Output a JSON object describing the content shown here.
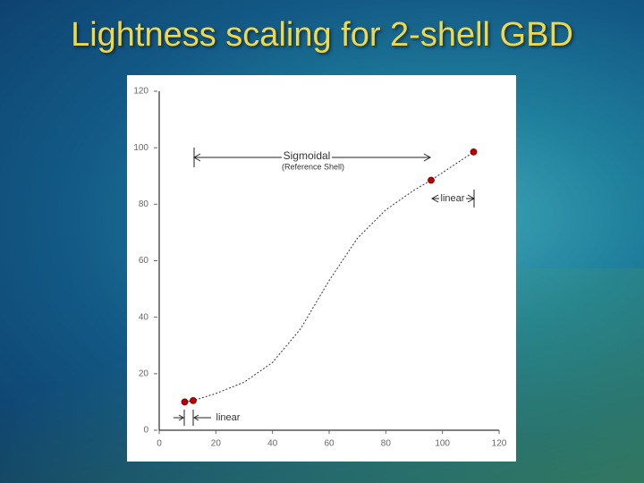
{
  "title": "Lightness scaling for 2-shell GBD",
  "chart_data": {
    "type": "line",
    "xlim": [
      0,
      120
    ],
    "ylim": [
      0,
      120
    ],
    "xticks": [
      0,
      20,
      40,
      60,
      80,
      100,
      120
    ],
    "yticks": [
      0,
      20,
      40,
      60,
      80,
      100,
      120
    ],
    "series": [
      {
        "color": "#333333",
        "dashed": true,
        "x": [
          9,
          12,
          20,
          30,
          40,
          50,
          60,
          70,
          80,
          90,
          96,
          111
        ],
        "values": [
          10,
          10.5,
          13,
          17,
          24,
          36,
          53,
          68,
          78,
          85,
          88.5,
          98.5
        ]
      },
      {
        "color": "#c00000",
        "markers": true,
        "x": [
          9,
          12,
          96,
          111
        ],
        "values": [
          10,
          10.5,
          88.5,
          98.5
        ]
      }
    ],
    "annotations": [
      "Sigmoidal",
      "(Reference Shell)",
      "linear",
      "linear"
    ]
  }
}
